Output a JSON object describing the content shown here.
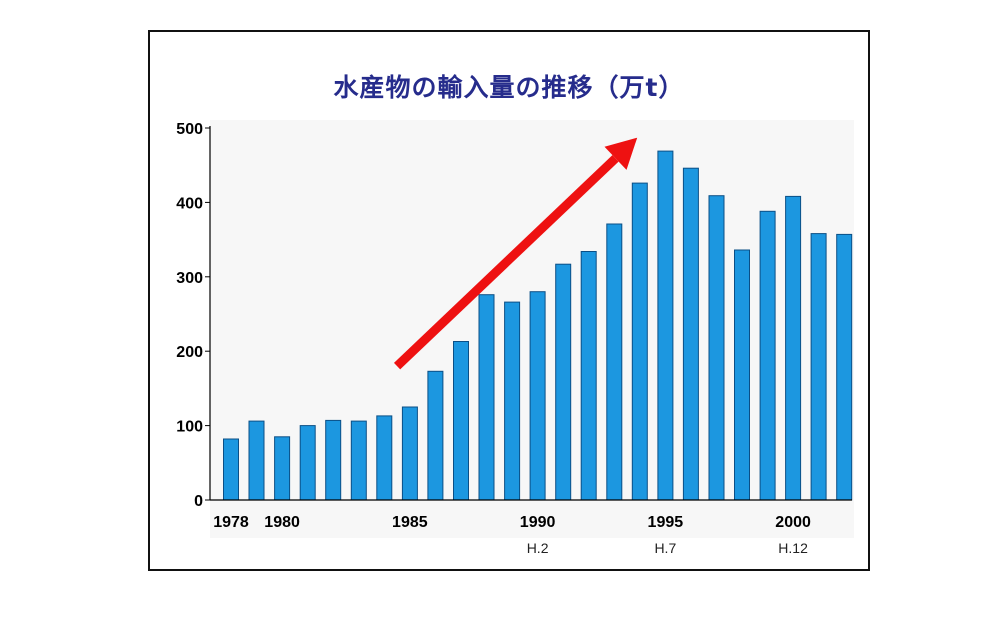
{
  "chart_data": {
    "type": "bar",
    "title": "水産物の輸入量の推移（万t）",
    "xlabel": "",
    "ylabel": "",
    "ylim": [
      0,
      500
    ],
    "yticks": [
      0,
      100,
      200,
      300,
      400,
      500
    ],
    "ytick_labels": [
      "0",
      "100",
      "200",
      "300",
      "400",
      "500"
    ],
    "x": [
      1978,
      1979,
      1980,
      1981,
      1982,
      1983,
      1984,
      1985,
      1986,
      1987,
      1988,
      1989,
      1990,
      1991,
      1992,
      1993,
      1994,
      1995,
      1996,
      1997,
      1998,
      1999,
      2000,
      2001,
      2002
    ],
    "values": [
      82,
      106,
      85,
      100,
      107,
      106,
      113,
      125,
      173,
      213,
      276,
      266,
      280,
      317,
      334,
      371,
      426,
      469,
      446,
      409,
      336,
      388,
      408,
      358,
      357
    ],
    "year_tick_labels": [
      {
        "year": 1978,
        "label": "1978"
      },
      {
        "year": 1980,
        "label": "1980"
      },
      {
        "year": 1985,
        "label": "1985"
      },
      {
        "year": 1990,
        "label": "1990"
      },
      {
        "year": 1995,
        "label": "1995"
      },
      {
        "year": 2000,
        "label": "2000"
      }
    ],
    "era_tick_labels": [
      {
        "year": 1990,
        "label": "H.2"
      },
      {
        "year": 1995,
        "label": "H.7"
      },
      {
        "year": 2000,
        "label": "H.12"
      }
    ],
    "annotations": [
      {
        "type": "trend-arrow",
        "from": {
          "year": 1984.5,
          "value": 180
        },
        "to": {
          "year": 1993.9,
          "value": 487
        }
      }
    ],
    "grid": false,
    "legend": "none"
  },
  "colors": {
    "bar": "#1c97e0",
    "bar_edge": "#0b4f86",
    "title": "#262c8c",
    "arrow": "#ee1111",
    "axis": "#000000",
    "plot_background": "#f7f7f7"
  }
}
